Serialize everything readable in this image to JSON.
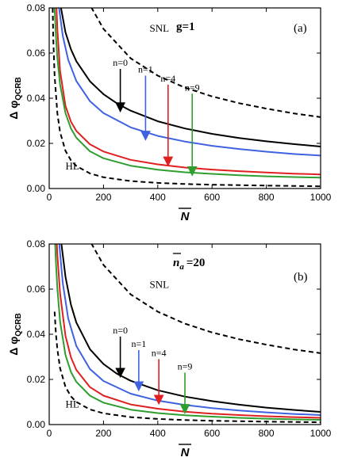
{
  "chart_data": [
    {
      "type": "line",
      "panel_label": "(a)",
      "condition_main": "g=1",
      "condition_sub": "",
      "condition_suffix": "",
      "xlabel_main": "N",
      "ylabel_main": "Δ φ",
      "ylabel_sub": "QCRB",
      "xlim": [
        0,
        1000
      ],
      "ylim": [
        0,
        0.08
      ],
      "xticks": [
        0,
        200,
        400,
        600,
        800,
        1000
      ],
      "yticks": [
        0.0,
        0.02,
        0.04,
        0.06,
        0.08
      ],
      "xtick_labels": [
        "0",
        "200",
        "400",
        "600",
        "800",
        "1000"
      ],
      "ytick_labels": [
        "0.00",
        "0.02",
        "0.04",
        "0.06",
        "0.08"
      ],
      "grid": false,
      "legend": "none",
      "series": [
        {
          "name": "SNL",
          "color": "#000000",
          "dashed": true,
          "scale": 1.0,
          "x": [
            155,
            200,
            300,
            400,
            500,
            600,
            700,
            800,
            900,
            1000
          ],
          "y": [
            0.0803,
            0.0707,
            0.0577,
            0.05,
            0.0447,
            0.0408,
            0.0378,
            0.0354,
            0.0333,
            0.0316
          ]
        },
        {
          "name": "n=0",
          "color": "#000000",
          "dashed": false,
          "scale": 1.0,
          "x": [
            43,
            60,
            80,
            100,
            150,
            200,
            250,
            300,
            400,
            500,
            600,
            700,
            800,
            900,
            1000
          ],
          "y": [
            0.0803,
            0.0692,
            0.0617,
            0.0564,
            0.0475,
            0.0418,
            0.0377,
            0.0345,
            0.0298,
            0.0266,
            0.0242,
            0.0224,
            0.0209,
            0.0197,
            0.0186
          ]
        },
        {
          "name": "n=1",
          "color": "#3f62e0",
          "dashed": false,
          "scale": 1.0,
          "x": [
            36,
            50,
            70,
            100,
            150,
            200,
            300,
            400,
            500,
            600,
            700,
            800,
            900,
            1000
          ],
          "y": [
            0.0803,
            0.0677,
            0.0571,
            0.0476,
            0.0387,
            0.0334,
            0.0271,
            0.0233,
            0.0208,
            0.0189,
            0.0175,
            0.0163,
            0.0153,
            0.0146
          ]
        },
        {
          "name": "n=4",
          "color": "#e02020",
          "dashed": false,
          "scale": 1.0,
          "x": [
            27,
            30,
            40,
            60,
            80,
            100,
            150,
            200,
            300,
            400,
            500,
            600,
            700,
            800,
            900,
            1000
          ],
          "y": [
            0.08,
            0.0704,
            0.0521,
            0.0366,
            0.0296,
            0.0255,
            0.0196,
            0.0164,
            0.0127,
            0.0107,
            0.0093,
            0.0084,
            0.0077,
            0.0071,
            0.0066,
            0.0062
          ]
        },
        {
          "name": "n=9",
          "color": "#2f9e2f",
          "dashed": false,
          "scale": 1.0,
          "x": [
            20,
            25,
            30,
            40,
            60,
            80,
            100,
            150,
            200,
            300,
            400,
            500,
            600,
            700,
            800,
            900,
            1000
          ],
          "y": [
            0.08,
            0.0673,
            0.0579,
            0.0461,
            0.0334,
            0.0266,
            0.0225,
            0.0165,
            0.0134,
            0.0101,
            0.0083,
            0.0072,
            0.0065,
            0.0059,
            0.0054,
            0.0051,
            0.0048
          ]
        },
        {
          "name": "HL",
          "color": "#000000",
          "dashed": true,
          "scale": 1.0,
          "x": [
            13,
            15,
            20,
            30,
            40,
            60,
            80,
            100,
            150,
            200,
            300,
            400,
            500,
            600,
            800,
            1000
          ],
          "y": [
            0.08,
            0.0667,
            0.05,
            0.0333,
            0.025,
            0.0167,
            0.0125,
            0.01,
            0.0067,
            0.005,
            0.0033,
            0.0025,
            0.002,
            0.0017,
            0.0013,
            0.001
          ]
        }
      ],
      "annotations": [
        {
          "text": "SNL",
          "x": 370,
          "y": 0.0695
        },
        {
          "text": "HL",
          "x": 60,
          "y": 0.0085
        }
      ],
      "arrows": [
        {
          "label": "n=0",
          "x": 262,
          "y_tip": 0.0348,
          "y_tail": 0.053,
          "color": "#000000"
        },
        {
          "label": "n=1",
          "x": 355,
          "y_tip": 0.0222,
          "y_tail": 0.05,
          "color": "#3f62e0"
        },
        {
          "label": "n=4",
          "x": 438,
          "y_tip": 0.0108,
          "y_tail": 0.046,
          "color": "#e02020"
        },
        {
          "label": "n=9",
          "x": 527,
          "y_tip": 0.0065,
          "y_tail": 0.042,
          "color": "#2f9e2f"
        }
      ]
    },
    {
      "type": "line",
      "panel_label": "(b)",
      "condition_main": "n",
      "condition_sub": "a",
      "condition_suffix": "=20",
      "xlabel_main": "N",
      "ylabel_main": "Δ φ",
      "ylabel_sub": "QCRB",
      "xlim": [
        0,
        1000
      ],
      "ylim": [
        0,
        0.08
      ],
      "xticks": [
        0,
        200,
        400,
        600,
        800,
        1000
      ],
      "yticks": [
        0.0,
        0.02,
        0.04,
        0.06,
        0.08
      ],
      "xtick_labels": [
        "0",
        "200",
        "400",
        "600",
        "800",
        "1000"
      ],
      "ytick_labels": [
        "0.00",
        "0.02",
        "0.04",
        "0.06",
        "0.08"
      ],
      "grid": false,
      "legend": "none",
      "series": [
        {
          "name": "SNL",
          "color": "#000000",
          "dashed": true,
          "scale": 1.0,
          "x": [
            155,
            200,
            300,
            400,
            500,
            600,
            700,
            800,
            900,
            1000
          ],
          "y": [
            0.0803,
            0.0707,
            0.0577,
            0.05,
            0.0447,
            0.0408,
            0.0378,
            0.0354,
            0.0333,
            0.0316
          ]
        },
        {
          "name": "n=0",
          "color": "#000000",
          "dashed": false,
          "scale": 1.0,
          "x": [
            45,
            60,
            80,
            100,
            150,
            200,
            250,
            300,
            400,
            500,
            600,
            700,
            800,
            900,
            1000
          ],
          "y": [
            0.08,
            0.0655,
            0.0531,
            0.0452,
            0.0334,
            0.0268,
            0.0225,
            0.0194,
            0.0152,
            0.0124,
            0.0104,
            0.0088,
            0.0075,
            0.0065,
            0.0056
          ]
        },
        {
          "name": "n=1",
          "color": "#3f62e0",
          "dashed": false,
          "scale": 1.0,
          "x": [
            37,
            50,
            70,
            100,
            150,
            200,
            300,
            400,
            500,
            600,
            700,
            800,
            900,
            1000
          ],
          "y": [
            0.08,
            0.0627,
            0.0471,
            0.0348,
            0.0246,
            0.0193,
            0.0137,
            0.0106,
            0.0087,
            0.0073,
            0.0062,
            0.0054,
            0.0047,
            0.0042
          ]
        },
        {
          "name": "n=4",
          "color": "#e02020",
          "dashed": false,
          "scale": 1.0,
          "x": [
            28,
            30,
            40,
            60,
            80,
            100,
            150,
            200,
            300,
            400,
            500,
            600,
            700,
            800,
            900,
            1000
          ],
          "y": [
            0.08,
            0.0751,
            0.0581,
            0.0393,
            0.0298,
            0.0242,
            0.0166,
            0.0128,
            0.0089,
            0.007,
            0.0057,
            0.0048,
            0.0042,
            0.0037,
            0.0033,
            0.003
          ]
        },
        {
          "name": "n=9",
          "color": "#2f9e2f",
          "dashed": false,
          "scale": 1.0,
          "x": [
            22,
            25,
            30,
            40,
            60,
            80,
            100,
            150,
            200,
            300,
            400,
            500,
            600,
            700,
            800,
            900,
            1000
          ],
          "y": [
            0.08,
            0.0718,
            0.0602,
            0.0457,
            0.0308,
            0.0233,
            0.0189,
            0.0128,
            0.0097,
            0.0066,
            0.0051,
            0.0041,
            0.0035,
            0.003,
            0.0026,
            0.0023,
            0.0021
          ]
        },
        {
          "name": "HL",
          "color": "#000000",
          "dashed": true,
          "scale": 1.0,
          "x": [
            20,
            25,
            30,
            40,
            60,
            80,
            100,
            150,
            200,
            300,
            400,
            500,
            600,
            800,
            1000
          ],
          "y": [
            0.05,
            0.04,
            0.0333,
            0.025,
            0.0167,
            0.0125,
            0.01,
            0.0067,
            0.005,
            0.0033,
            0.0025,
            0.002,
            0.0017,
            0.0013,
            0.001
          ]
        }
      ],
      "annotations": [
        {
          "text": "SNL",
          "x": 370,
          "y": 0.0605
        },
        {
          "text": "HL",
          "x": 60,
          "y": 0.0075
        }
      ],
      "arrows": [
        {
          "label": "n=0",
          "x": 262,
          "y_tip": 0.0218,
          "y_tail": 0.039,
          "color": "#000000"
        },
        {
          "label": "n=1",
          "x": 330,
          "y_tip": 0.0158,
          "y_tail": 0.033,
          "color": "#3f62e0"
        },
        {
          "label": "n=4",
          "x": 404,
          "y_tip": 0.0098,
          "y_tail": 0.029,
          "color": "#e02020"
        },
        {
          "label": "n=9",
          "x": 500,
          "y_tip": 0.0057,
          "y_tail": 0.023,
          "color": "#2f9e2f"
        }
      ]
    }
  ]
}
